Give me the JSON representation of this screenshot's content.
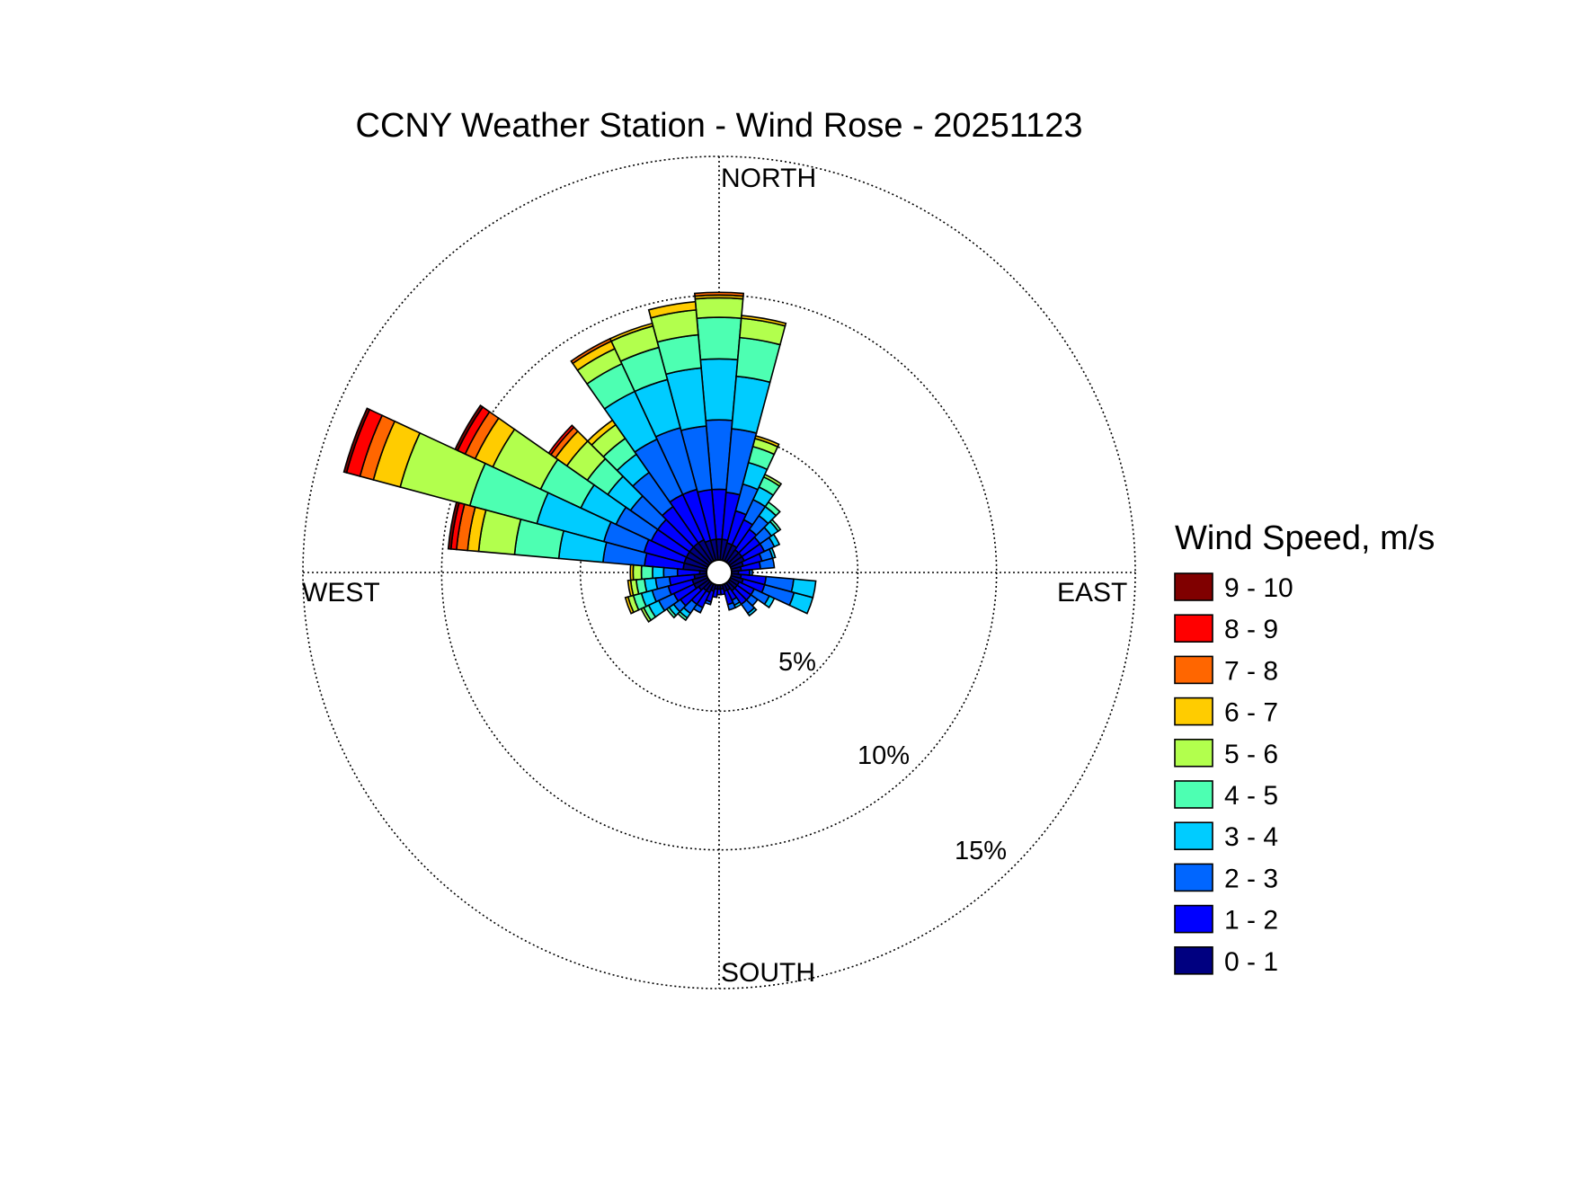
{
  "chart_data": {
    "type": "windrose",
    "title": "CCNY Weather Station - Wind Rose - 20251123",
    "directions": {
      "north": "NORTH",
      "east": "EAST",
      "south": "SOUTH",
      "west": "WEST"
    },
    "ring_labels": [
      "5%",
      "10%",
      "15%"
    ],
    "ring_values": [
      5,
      10,
      15
    ],
    "rmax": 15,
    "legend_title": "Wind Speed, m/s",
    "speed_bins": [
      {
        "label": "0 - 1",
        "color": "#000080"
      },
      {
        "label": "1 - 2",
        "color": "#0000ff"
      },
      {
        "label": "2 - 3",
        "color": "#0066ff"
      },
      {
        "label": "3 - 4",
        "color": "#00ccff"
      },
      {
        "label": "4 - 5",
        "color": "#4dffb2"
      },
      {
        "label": "5 - 6",
        "color": "#b2ff4d"
      },
      {
        "label": "6 - 7",
        "color": "#ffcc00"
      },
      {
        "label": "7 - 8",
        "color": "#ff6600"
      },
      {
        "label": "8 - 9",
        "color": "#ff0000"
      },
      {
        "label": "9 - 10",
        "color": "#800000"
      }
    ],
    "sector_width_deg": 10,
    "sectors": [
      {
        "dir": 0,
        "pct": [
          1.2,
          1.8,
          2.5,
          2.2,
          1.5,
          0.7,
          0.1,
          0.1,
          0.0,
          0.0
        ]
      },
      {
        "dir": 10,
        "pct": [
          1.2,
          1.7,
          2.3,
          1.9,
          1.4,
          0.7,
          0.1,
          0.0,
          0.0,
          0.0
        ]
      },
      {
        "dir": 350,
        "pct": [
          1.2,
          1.8,
          2.3,
          2.1,
          1.2,
          0.9,
          0.3,
          0.0,
          0.0,
          0.0
        ]
      },
      {
        "dir": 340,
        "pct": [
          1.2,
          1.9,
          2.3,
          1.8,
          1.2,
          0.8,
          0.1,
          0.0,
          0.0,
          0.0
        ]
      },
      {
        "dir": 330,
        "pct": [
          1.3,
          1.8,
          2.2,
          1.9,
          1.1,
          0.6,
          0.3,
          0.1,
          0.0,
          0.0
        ]
      },
      {
        "dir": 320,
        "pct": [
          1.3,
          1.6,
          1.5,
          0.8,
          0.7,
          0.6,
          0.2,
          0.0,
          0.0,
          0.0
        ]
      },
      {
        "dir": 310,
        "pct": [
          1.3,
          1.4,
          1.2,
          1.0,
          0.9,
          0.9,
          0.5,
          0.2,
          0.1,
          0.0
        ]
      },
      {
        "dir": 300,
        "pct": [
          1.3,
          1.4,
          1.4,
          1.4,
          1.6,
          1.9,
          0.7,
          0.4,
          0.3,
          0.1
        ]
      },
      {
        "dir": 290,
        "pct": [
          1.3,
          1.5,
          1.5,
          2.5,
          2.5,
          2.6,
          1.0,
          0.5,
          0.5,
          0.1
        ]
      },
      {
        "dir": 280,
        "pct": [
          1.3,
          1.4,
          1.5,
          1.6,
          1.6,
          1.3,
          0.4,
          0.4,
          0.2,
          0.1
        ]
      },
      {
        "dir": 270,
        "pct": [
          0.7,
          0.8,
          0.5,
          0.4,
          0.4,
          0.3,
          0.1,
          0.0,
          0.0,
          0.0
        ]
      },
      {
        "dir": 260,
        "pct": [
          0.9,
          0.9,
          0.5,
          0.4,
          0.3,
          0.2,
          0.1,
          0.0,
          0.0,
          0.0
        ]
      },
      {
        "dir": 250,
        "pct": [
          1.0,
          0.9,
          0.6,
          0.4,
          0.3,
          0.2,
          0.1,
          0.0,
          0.0,
          0.0
        ]
      },
      {
        "dir": 240,
        "pct": [
          1.0,
          0.8,
          0.6,
          0.4,
          0.2,
          0.1,
          0.0,
          0.0,
          0.0,
          0.0
        ]
      },
      {
        "dir": 230,
        "pct": [
          0.9,
          0.8,
          0.3,
          0.2,
          0.1,
          0.0,
          0.0,
          0.0,
          0.0,
          0.0
        ]
      },
      {
        "dir": 220,
        "pct": [
          0.8,
          0.6,
          0.4,
          0.2,
          0.1,
          0.0,
          0.0,
          0.0,
          0.0,
          0.0
        ]
      },
      {
        "dir": 210,
        "pct": [
          0.8,
          0.6,
          0.2,
          0.0,
          0.0,
          0.0,
          0.0,
          0.0,
          0.0,
          0.0
        ]
      },
      {
        "dir": 200,
        "pct": [
          0.7,
          0.4,
          0.1,
          0.0,
          0.0,
          0.0,
          0.0,
          0.0,
          0.0,
          0.0
        ]
      },
      {
        "dir": 190,
        "pct": [
          0.6,
          0.3,
          0.0,
          0.0,
          0.0,
          0.0,
          0.0,
          0.0,
          0.0,
          0.0
        ]
      },
      {
        "dir": 180,
        "pct": [
          0.6,
          0.2,
          0.0,
          0.0,
          0.0,
          0.0,
          0.0,
          0.0,
          0.0,
          0.0
        ]
      },
      {
        "dir": 170,
        "pct": [
          0.6,
          0.2,
          0.0,
          0.0,
          0.0,
          0.0,
          0.0,
          0.0,
          0.0,
          0.0
        ]
      },
      {
        "dir": 160,
        "pct": [
          0.7,
          0.5,
          0.2,
          0.0,
          0.0,
          0.0,
          0.0,
          0.0,
          0.0,
          0.0
        ]
      },
      {
        "dir": 150,
        "pct": [
          0.7,
          0.4,
          0.2,
          0.1,
          0.0,
          0.0,
          0.0,
          0.0,
          0.0,
          0.0
        ]
      },
      {
        "dir": 140,
        "pct": [
          0.8,
          0.6,
          0.4,
          0.1,
          0.0,
          0.0,
          0.0,
          0.0,
          0.0,
          0.0
        ]
      },
      {
        "dir": 130,
        "pct": [
          0.8,
          0.6,
          0.3,
          0.0,
          0.0,
          0.0,
          0.0,
          0.0,
          0.0,
          0.0
        ]
      },
      {
        "dir": 120,
        "pct": [
          0.8,
          0.6,
          0.6,
          0.2,
          0.0,
          0.0,
          0.0,
          0.0,
          0.0,
          0.0
        ]
      },
      {
        "dir": 110,
        "pct": [
          0.9,
          0.8,
          1.1,
          0.7,
          0.0,
          0.0,
          0.0,
          0.0,
          0.0,
          0.0
        ]
      },
      {
        "dir": 100,
        "pct": [
          0.8,
          0.9,
          1.0,
          0.8,
          0.0,
          0.0,
          0.0,
          0.0,
          0.0,
          0.0
        ]
      },
      {
        "dir": 90,
        "pct": [
          0.7,
          0.4,
          0.1,
          0.0,
          0.0,
          0.0,
          0.0,
          0.0,
          0.0,
          0.0
        ]
      },
      {
        "dir": 80,
        "pct": [
          0.8,
          0.7,
          0.5,
          0.0,
          0.0,
          0.0,
          0.0,
          0.0,
          0.0,
          0.0
        ]
      },
      {
        "dir": 70,
        "pct": [
          0.9,
          0.7,
          0.4,
          0.1,
          0.0,
          0.0,
          0.0,
          0.0,
          0.0,
          0.0
        ]
      },
      {
        "dir": 60,
        "pct": [
          1.0,
          0.8,
          0.4,
          0.2,
          0.0,
          0.0,
          0.0,
          0.0,
          0.0,
          0.0
        ]
      },
      {
        "dir": 50,
        "pct": [
          1.0,
          0.8,
          0.5,
          0.3,
          0.1,
          0.0,
          0.0,
          0.0,
          0.0,
          0.0
        ]
      },
      {
        "dir": 40,
        "pct": [
          1.0,
          0.9,
          0.6,
          0.4,
          0.2,
          0.0,
          0.0,
          0.0,
          0.0,
          0.0
        ]
      },
      {
        "dir": 30,
        "pct": [
          1.1,
          1.0,
          0.8,
          0.5,
          0.4,
          0.1,
          0.0,
          0.0,
          0.0,
          0.0
        ]
      },
      {
        "dir": 20,
        "pct": [
          1.1,
          1.2,
          1.0,
          0.8,
          0.6,
          0.3,
          0.1,
          0.0,
          0.0,
          0.0
        ]
      }
    ]
  }
}
